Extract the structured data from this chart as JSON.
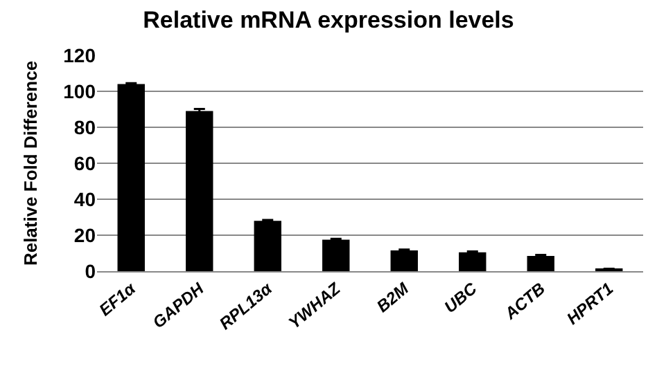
{
  "chart_data": {
    "type": "bar",
    "title": "Relative mRNA expression levels",
    "ylabel": "Relative Fold Difference",
    "categories": [
      "EF1α",
      "GAPDH",
      "RPL13α",
      "YWHAZ",
      "B2M",
      "UBC",
      "ACTB",
      "HPRT1"
    ],
    "values": [
      104,
      89,
      28,
      17.5,
      11.5,
      10.5,
      8.5,
      1
    ],
    "errors": [
      0.5,
      1.2,
      0.5,
      0.5,
      0.5,
      0.5,
      0.5,
      0.3
    ],
    "color": "#000000",
    "ylim": [
      0,
      120
    ],
    "yticks": [
      0,
      20,
      40,
      60,
      80,
      100,
      120
    ],
    "grid": "y"
  }
}
